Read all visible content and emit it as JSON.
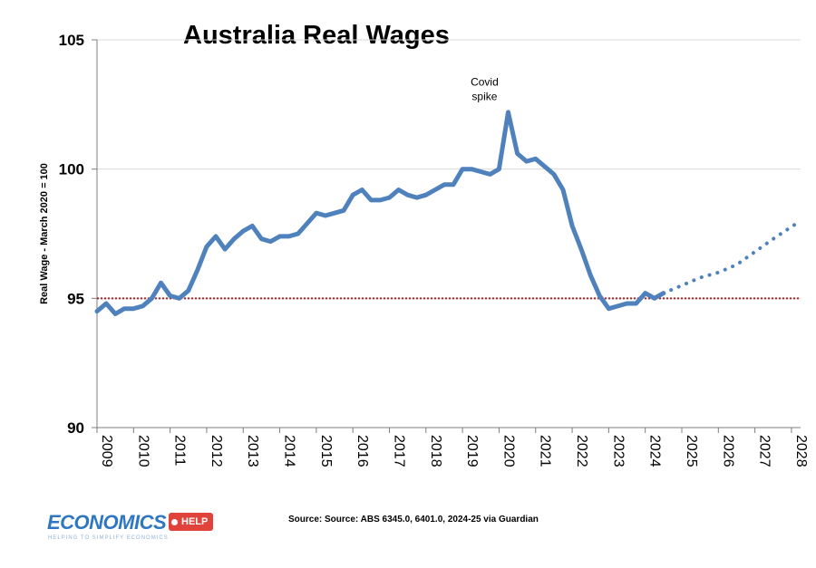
{
  "chart_data": {
    "type": "line",
    "title": "Australia Real Wages",
    "ylabel": "Real Wage - March 2020 = 100",
    "ylim": [
      90,
      105
    ],
    "yticks": [
      90,
      95,
      100,
      105
    ],
    "xlim": [
      2009,
      2028.25
    ],
    "xticks": [
      "2009",
      "2010",
      "2011",
      "2012",
      "2013",
      "2014",
      "2015",
      "2016",
      "2017",
      "2018",
      "2019",
      "2020",
      "2021",
      "2022",
      "2023",
      "2024",
      "2025",
      "2026",
      "2027",
      "2028"
    ],
    "grid": "horizontal",
    "colors": {
      "series": "#4f81bd",
      "reference": "#b22222",
      "grid": "#d9d9d9"
    },
    "series": [
      {
        "style": "solid",
        "points": [
          [
            2009.0,
            94.5
          ],
          [
            2009.25,
            94.8
          ],
          [
            2009.5,
            94.4
          ],
          [
            2009.75,
            94.6
          ],
          [
            2010.0,
            94.6
          ],
          [
            2010.25,
            94.7
          ],
          [
            2010.5,
            95.0
          ],
          [
            2010.75,
            95.6
          ],
          [
            2011.0,
            95.1
          ],
          [
            2011.25,
            95.0
          ],
          [
            2011.5,
            95.3
          ],
          [
            2011.75,
            96.1
          ],
          [
            2012.0,
            97.0
          ],
          [
            2012.25,
            97.4
          ],
          [
            2012.5,
            96.9
          ],
          [
            2012.75,
            97.3
          ],
          [
            2013.0,
            97.6
          ],
          [
            2013.25,
            97.8
          ],
          [
            2013.5,
            97.3
          ],
          [
            2013.75,
            97.2
          ],
          [
            2014.0,
            97.4
          ],
          [
            2014.25,
            97.4
          ],
          [
            2014.5,
            97.5
          ],
          [
            2014.75,
            97.9
          ],
          [
            2015.0,
            98.3
          ],
          [
            2015.25,
            98.2
          ],
          [
            2015.5,
            98.3
          ],
          [
            2015.75,
            98.4
          ],
          [
            2016.0,
            99.0
          ],
          [
            2016.25,
            99.2
          ],
          [
            2016.5,
            98.8
          ],
          [
            2016.75,
            98.8
          ],
          [
            2017.0,
            98.9
          ],
          [
            2017.25,
            99.2
          ],
          [
            2017.5,
            99.0
          ],
          [
            2017.75,
            98.9
          ],
          [
            2018.0,
            99.0
          ],
          [
            2018.25,
            99.2
          ],
          [
            2018.5,
            99.4
          ],
          [
            2018.75,
            99.4
          ],
          [
            2019.0,
            100.0
          ],
          [
            2019.25,
            100.0
          ],
          [
            2019.5,
            99.9
          ],
          [
            2019.75,
            99.8
          ],
          [
            2020.0,
            100.0
          ],
          [
            2020.25,
            102.2
          ],
          [
            2020.5,
            100.6
          ],
          [
            2020.75,
            100.3
          ],
          [
            2021.0,
            100.4
          ],
          [
            2021.25,
            100.1
          ],
          [
            2021.5,
            99.8
          ],
          [
            2021.75,
            99.2
          ],
          [
            2022.0,
            97.8
          ],
          [
            2022.25,
            96.9
          ],
          [
            2022.5,
            95.9
          ],
          [
            2022.75,
            95.1
          ],
          [
            2023.0,
            94.6
          ],
          [
            2023.25,
            94.7
          ],
          [
            2023.5,
            94.8
          ],
          [
            2023.75,
            94.8
          ],
          [
            2024.0,
            95.2
          ],
          [
            2024.25,
            95.0
          ],
          [
            2024.5,
            95.2
          ]
        ]
      },
      {
        "style": "dotted",
        "points": [
          [
            2024.5,
            95.2
          ],
          [
            2025.0,
            95.5
          ],
          [
            2025.5,
            95.8
          ],
          [
            2026.0,
            96.0
          ],
          [
            2026.5,
            96.3
          ],
          [
            2027.0,
            96.8
          ],
          [
            2027.5,
            97.3
          ],
          [
            2028.25,
            98.0
          ]
        ]
      }
    ],
    "reference_line": {
      "y": 95,
      "style": "dotted"
    },
    "annotations": [
      {
        "lines": [
          "Covid",
          "spike"
        ],
        "x": 2020.0,
        "y": 102.6
      }
    ]
  },
  "footer": {
    "source": "Source:  Source: ABS 6345.0, 6401.0, 2024-25 via Guardian",
    "logo_main": "ECONOMICS",
    "logo_badge": "HELP",
    "logo_tagline": "HELPING TO SIMPLIFY ECONOMICS"
  }
}
